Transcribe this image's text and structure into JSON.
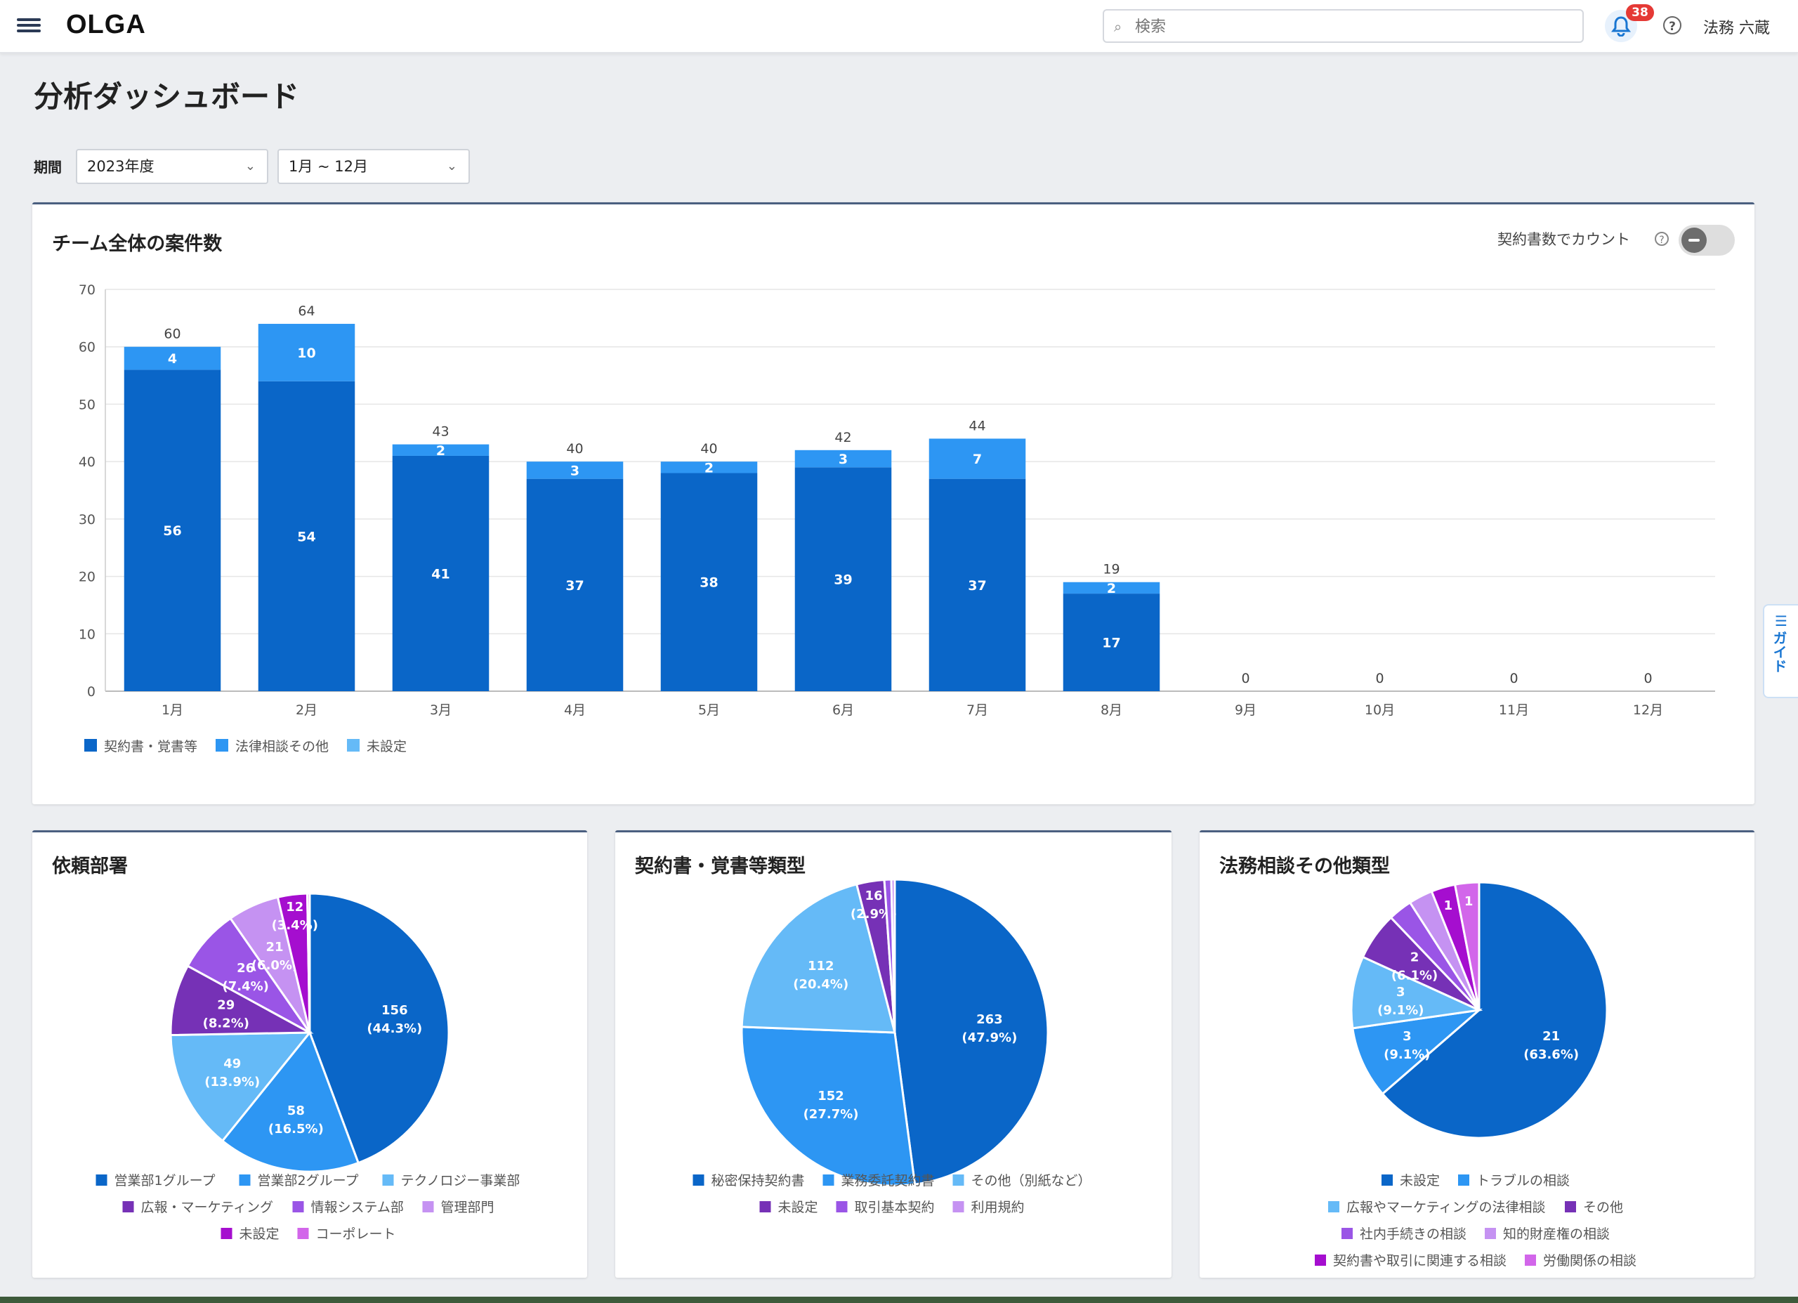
{
  "app": {
    "brand": "OLGA"
  },
  "header": {
    "search_placeholder": "検索",
    "notification_count": "38",
    "user_name": "法務 六蔵",
    "help_symbol": "?"
  },
  "page": {
    "title": "分析ダッシュボード"
  },
  "filters": {
    "label": "期間",
    "year": "2023年度",
    "months": "1月 ~ 12月"
  },
  "guide": {
    "label": "ガイド"
  },
  "colors": {
    "contract": "#0a66c8",
    "consult": "#2d96f3",
    "unset": "#65baf7",
    "dark_purple": "#7631b6",
    "purple": "#9a55e6",
    "light_purple": "#c592f2",
    "magenta": "#a50ecf",
    "pink": "#d266ea"
  },
  "bar_card": {
    "title": "チーム全体の案件数",
    "toggle_label": "契約書数でカウント",
    "toggle_on": false
  },
  "chart_data": [
    {
      "type": "bar",
      "stacked": true,
      "title": "チーム全体の案件数",
      "categories": [
        "1月",
        "2月",
        "3月",
        "4月",
        "5月",
        "6月",
        "7月",
        "8月",
        "9月",
        "10月",
        "11月",
        "12月"
      ],
      "series": [
        {
          "name": "契約書・覚書等",
          "values": [
            56,
            54,
            41,
            37,
            38,
            39,
            37,
            17,
            0,
            0,
            0,
            0
          ]
        },
        {
          "name": "法律相談その他",
          "values": [
            4,
            10,
            2,
            3,
            2,
            3,
            7,
            2,
            0,
            0,
            0,
            0
          ]
        },
        {
          "name": "未設定",
          "values": [
            0,
            0,
            0,
            0,
            0,
            0,
            0,
            0,
            0,
            0,
            0,
            0
          ]
        }
      ],
      "totals": [
        60,
        64,
        43,
        40,
        40,
        42,
        44,
        19,
        0,
        0,
        0,
        0
      ],
      "ylim": [
        0,
        70
      ],
      "yticks": [
        0,
        10,
        20,
        30,
        40,
        50,
        60,
        70
      ],
      "grid": true,
      "legend": "bottom-left"
    },
    {
      "type": "pie",
      "title": "依頼部署",
      "slices": [
        {
          "label": "営業部1グループ",
          "value": 156,
          "text": "156",
          "pct": "(44.3%)"
        },
        {
          "label": "営業部2グループ",
          "value": 58,
          "text": "58",
          "pct": "(16.5%)"
        },
        {
          "label": "テクノロジー事業部",
          "value": 49,
          "text": "49",
          "pct": "(13.9%)"
        },
        {
          "label": "広報・マーケティング",
          "value": 29,
          "text": "29",
          "pct": "(8.2%)"
        },
        {
          "label": "情報システム部",
          "value": 26,
          "text": "26",
          "pct": "(7.4%)"
        },
        {
          "label": "管理部門",
          "value": 21,
          "text": "21",
          "pct": "(6.0%)"
        },
        {
          "label": "未設定",
          "value": 12,
          "text": "12",
          "pct": "(3.4%)"
        },
        {
          "label": "コーポレート",
          "value": 1,
          "text": "",
          "pct": ""
        }
      ]
    },
    {
      "type": "pie",
      "title": "契約書・覚書等類型",
      "slices": [
        {
          "label": "秘密保持契約書",
          "value": 263,
          "text": "263",
          "pct": "(47.9%)"
        },
        {
          "label": "業務委託契約書",
          "value": 152,
          "text": "152",
          "pct": "(27.7%)"
        },
        {
          "label": "その他（別紙など）",
          "value": 112,
          "text": "112",
          "pct": "(20.4%)"
        },
        {
          "label": "未設定",
          "value": 16,
          "text": "16",
          "pct": "(2.9%)"
        },
        {
          "label": "取引基本契約",
          "value": 4,
          "text": "",
          "pct": ""
        },
        {
          "label": "利用規約",
          "value": 2,
          "text": "",
          "pct": ""
        }
      ]
    },
    {
      "type": "pie",
      "title": "法務相談その他類型",
      "slices": [
        {
          "label": "未設定",
          "value": 21,
          "text": "21",
          "pct": "(63.6%)"
        },
        {
          "label": "トラブルの相談",
          "value": 3,
          "text": "3",
          "pct": "(9.1%)"
        },
        {
          "label": "広報やマーケティングの法律相談",
          "value": 3,
          "text": "3",
          "pct": "(9.1%)"
        },
        {
          "label": "その他",
          "value": 2,
          "text": "2",
          "pct": "(6.1%)"
        },
        {
          "label": "社内手続きの相談",
          "value": 1,
          "text": "",
          "pct": ""
        },
        {
          "label": "知的財産権の相談",
          "value": 1,
          "text": "",
          "pct": ""
        },
        {
          "label": "契約書や取引に関連する相談",
          "value": 1,
          "text": "1",
          "pct": ""
        },
        {
          "label": "労働関係の相談",
          "value": 1,
          "text": "1",
          "pct": ""
        }
      ]
    }
  ]
}
